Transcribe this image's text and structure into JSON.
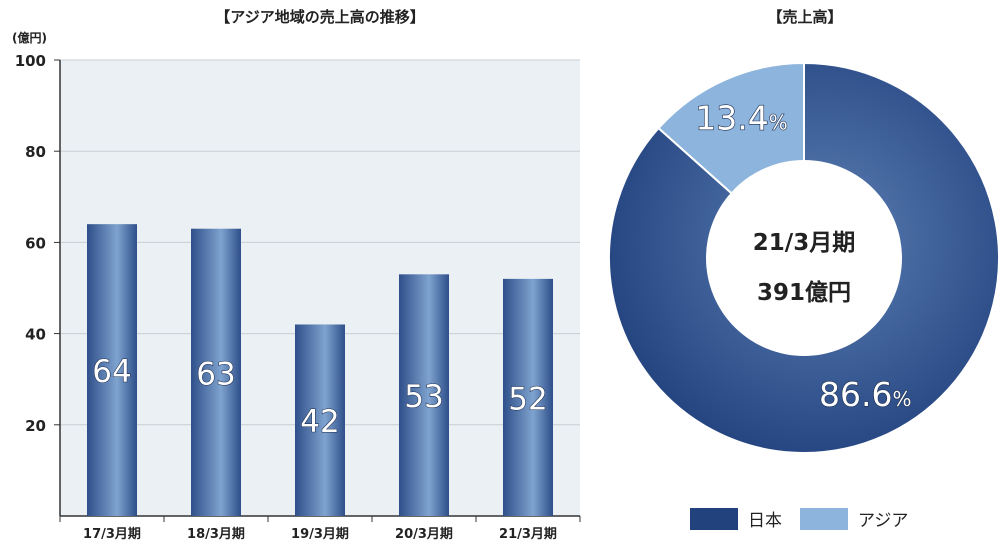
{
  "chart_data": [
    {
      "type": "bar",
      "title": "【アジア地域の売上高の推移】",
      "ylabel": "(億円)",
      "ylim": [
        0,
        100
      ],
      "yticks": [
        "100",
        "80",
        "60",
        "40",
        "20"
      ],
      "categories": [
        "17/3月期",
        "18/3月期",
        "19/3月期",
        "20/3月期",
        "21/3月期"
      ],
      "values": [
        64,
        63,
        42,
        53,
        52
      ],
      "grid": true,
      "colors": {
        "plot_bg": "#eaf0f4",
        "bar_dark": "#2e4f8a",
        "bar_light": "#7fa3cf",
        "grid": "#c8ced4"
      }
    },
    {
      "type": "pie",
      "title": "【売上高】",
      "center_line1": "21/3月期",
      "center_line2": "391億円",
      "slices": [
        {
          "name": "日本",
          "value": 86.6,
          "label": "86.6",
          "color": "#22427e"
        },
        {
          "name": "アジア",
          "value": 13.4,
          "label": "13.4",
          "color": "#8db4dc"
        }
      ],
      "percent_sign": "%",
      "legend": [
        "日本",
        "アジア"
      ],
      "legend_placement": "bottom"
    }
  ]
}
